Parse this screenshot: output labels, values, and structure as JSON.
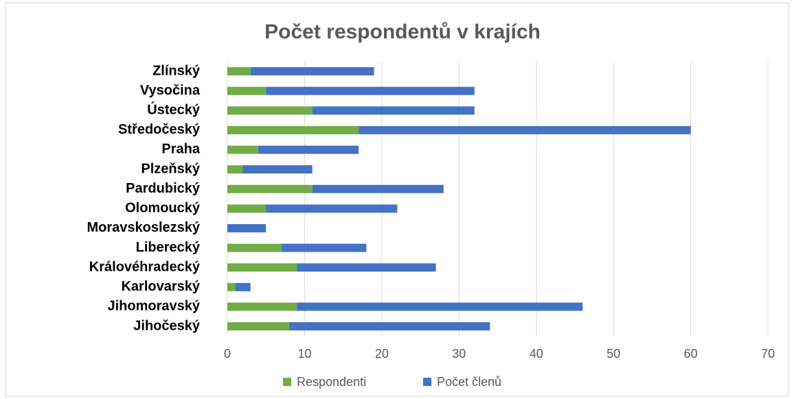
{
  "chart_data": {
    "type": "stacked-bar-horizontal",
    "title": "Počet respondentů v krajích",
    "categories": [
      "Jihočeský",
      "Jihomoravský",
      "Karlovarský",
      "Královéhradecký",
      "Liberecký",
      "Moravskoslezský",
      "Olomoucký",
      "Pardubický",
      "Plzeňský",
      "Praha",
      "Středočeský",
      "Ústecký",
      "Vysočina",
      "Zlínský"
    ],
    "series": [
      {
        "name": "Respondenti",
        "color": "#70ad47",
        "values": [
          8,
          9,
          1,
          9,
          7,
          0,
          5,
          11,
          2,
          4,
          17,
          11,
          5,
          3
        ]
      },
      {
        "name": "Počet členů",
        "color": "#4472c4",
        "values": [
          26,
          37,
          2,
          18,
          11,
          5,
          17,
          17,
          9,
          13,
          43,
          21,
          27,
          16
        ]
      }
    ],
    "xlim": [
      0,
      70
    ],
    "xticks": [
      0,
      10,
      20,
      30,
      40,
      50,
      60,
      70
    ],
    "grid": true,
    "legend": "bottom"
  }
}
